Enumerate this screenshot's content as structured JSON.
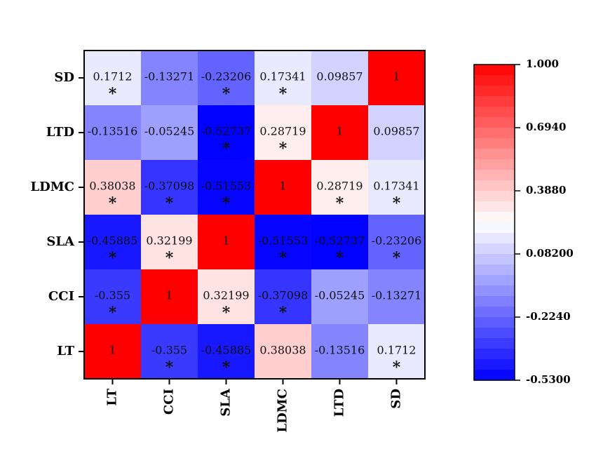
{
  "chart_data": {
    "type": "heatmap",
    "rows": [
      "SD",
      "LTD",
      "LDMC",
      "SLA",
      "CCI",
      "LT"
    ],
    "columns": [
      "LT",
      "CCI",
      "SLA",
      "LDMC",
      "LTD",
      "SD"
    ],
    "values": [
      [
        0.1712,
        -0.13271,
        -0.23206,
        0.17341,
        0.09857,
        1
      ],
      [
        -0.13516,
        -0.05245,
        -0.52737,
        0.28719,
        1,
        0.09857
      ],
      [
        0.38038,
        -0.37098,
        -0.51553,
        1,
        0.28719,
        0.17341
      ],
      [
        -0.45885,
        0.32199,
        1,
        -0.51553,
        -0.52737,
        -0.23206
      ],
      [
        -0.355,
        1,
        0.32199,
        -0.37098,
        -0.05245,
        -0.13271
      ],
      [
        1,
        -0.355,
        -0.45885,
        0.38038,
        -0.13516,
        0.1712
      ]
    ],
    "labels": [
      [
        "0.1712",
        "-0.13271",
        "-0.23206",
        "0.17341",
        "0.09857",
        "1"
      ],
      [
        "-0.13516",
        "-0.05245",
        "-0.52737",
        "0.28719",
        "1",
        "0.09857"
      ],
      [
        "0.38038",
        "-0.37098",
        "-0.51553",
        "1",
        "0.28719",
        "0.17341"
      ],
      [
        "-0.45885",
        "0.32199",
        "1",
        "-0.51553",
        "-0.52737",
        "-0.23206"
      ],
      [
        "-0.355",
        "1",
        "0.32199",
        "-0.37098",
        "-0.05245",
        "-0.13271"
      ],
      [
        "1",
        "-0.355",
        "-0.45885",
        "0.38038",
        "-0.13516",
        "0.1712"
      ]
    ],
    "significant": [
      [
        true,
        false,
        true,
        true,
        false,
        false
      ],
      [
        false,
        false,
        true,
        true,
        false,
        false
      ],
      [
        true,
        true,
        true,
        false,
        true,
        true
      ],
      [
        true,
        true,
        false,
        true,
        true,
        true
      ],
      [
        true,
        false,
        true,
        true,
        false,
        false
      ],
      [
        false,
        true,
        true,
        false,
        false,
        true
      ]
    ],
    "significance_marker": "*",
    "colorbar": {
      "min": -0.53,
      "max": 1.0,
      "ticks": [
        1.0,
        0.694,
        0.388,
        0.082,
        -0.224,
        -0.53
      ],
      "tick_labels": [
        "1.000",
        "0.6940",
        "0.3880",
        "0.08200",
        "-0.2240",
        "-0.5300"
      ],
      "low_color": "#0000ff",
      "mid_color": "#ffffff",
      "high_color": "#ff0000"
    },
    "title": "",
    "xlabel": "",
    "ylabel": ""
  }
}
